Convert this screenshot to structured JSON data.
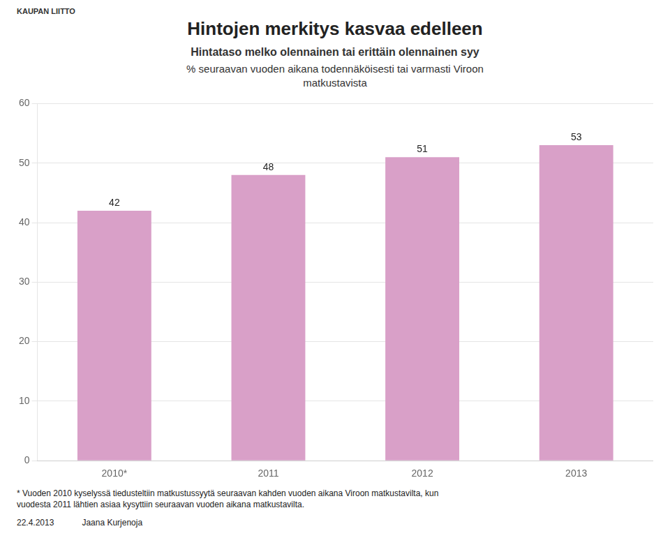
{
  "chart_data": {
    "type": "bar",
    "title": "Hintojen merkitys kasvaa edelleen",
    "subtitle": [
      "Hintataso melko olennainen tai erittäin olennainen syy",
      "% seuraavan vuoden aikana todennäköisesti tai varmasti Viroon",
      "matkustavista"
    ],
    "categories": [
      "2010*",
      "2011",
      "2012",
      "2013"
    ],
    "values": [
      42,
      48,
      51,
      53
    ],
    "color": "#D9A0C8",
    "ylim": [
      0,
      60
    ],
    "yticks": [
      0,
      10,
      20,
      30,
      40,
      50,
      60
    ],
    "grid": true,
    "data_labels": true,
    "annotations": [
      "KAUPAN LIITTO",
      "* Vuoden 2010 kyselyssä tiedusteltiin matkustussyytä seuraavan kahden vuoden aikana Viroon matkustavilta, kun",
      "vuodesta 2011 lähtien asiaa kysyttiin seuraavan vuoden aikana matkustavilta.",
      "22.4.2013",
      "Jaana Kurjenoja"
    ]
  }
}
